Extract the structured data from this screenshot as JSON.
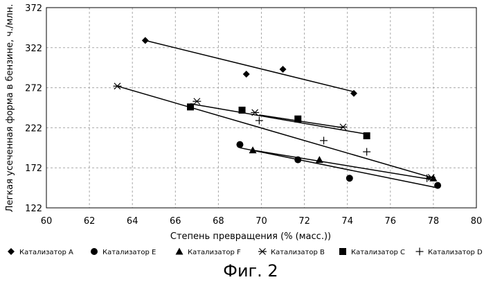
{
  "chart_data": {
    "type": "scatter",
    "title": "",
    "xlabel": "Степень превращения (% (масс.))",
    "ylabel": "Легкая усеченная форма в бензине, ч./млн.",
    "xlim": [
      60,
      80
    ],
    "ylim": [
      122,
      372
    ],
    "xticks": [
      60,
      62,
      64,
      66,
      68,
      70,
      72,
      74,
      76,
      78,
      80
    ],
    "yticks": [
      122,
      172,
      222,
      272,
      322,
      372
    ],
    "grid": true,
    "legend_position": "bottom",
    "series": [
      {
        "name": "Катализатор A",
        "marker": "diamond",
        "points": [
          [
            64.6,
            331
          ],
          [
            69.3,
            289
          ],
          [
            71.0,
            295
          ],
          [
            74.3,
            265
          ]
        ],
        "trend": [
          [
            64.6,
            331
          ],
          [
            74.3,
            267
          ]
        ]
      },
      {
        "name": "Катализатор E",
        "marker": "circle",
        "points": [
          [
            69.0,
            201
          ],
          [
            71.7,
            182
          ],
          [
            74.1,
            159
          ],
          [
            78.2,
            150
          ]
        ],
        "trend": [
          [
            69.0,
            197
          ],
          [
            78.2,
            147
          ]
        ]
      },
      {
        "name": "Катализатор F",
        "marker": "triangle",
        "points": [
          [
            69.6,
            194
          ],
          [
            72.7,
            182
          ],
          [
            78.0,
            159
          ]
        ],
        "trend": [
          [
            69.6,
            194
          ],
          [
            78.0,
            157
          ]
        ]
      },
      {
        "name": "Катализатор B",
        "marker": "asterisk",
        "points": [
          [
            63.3,
            274
          ],
          [
            67.0,
            255
          ],
          [
            69.7,
            241
          ],
          [
            73.8,
            223
          ],
          [
            77.9,
            160
          ]
        ],
        "trend": [
          [
            63.3,
            274
          ],
          [
            77.9,
            160
          ]
        ]
      },
      {
        "name": "Катализатор C",
        "marker": "square",
        "points": [
          [
            66.7,
            248
          ],
          [
            69.1,
            244
          ],
          [
            71.7,
            233
          ],
          [
            74.9,
            212
          ]
        ],
        "trend": [
          [
            66.7,
            252
          ],
          [
            74.9,
            214
          ]
        ]
      },
      {
        "name": "Катализатор D",
        "marker": "plus",
        "points": [
          [
            69.9,
            231
          ],
          [
            72.9,
            206
          ],
          [
            74.9,
            192
          ],
          [
            77.7,
            159
          ]
        ],
        "trend": [
          [
            69.9,
            238
          ],
          [
            73.8,
            222
          ]
        ]
      }
    ]
  },
  "figure_caption": "Фиг. 2"
}
